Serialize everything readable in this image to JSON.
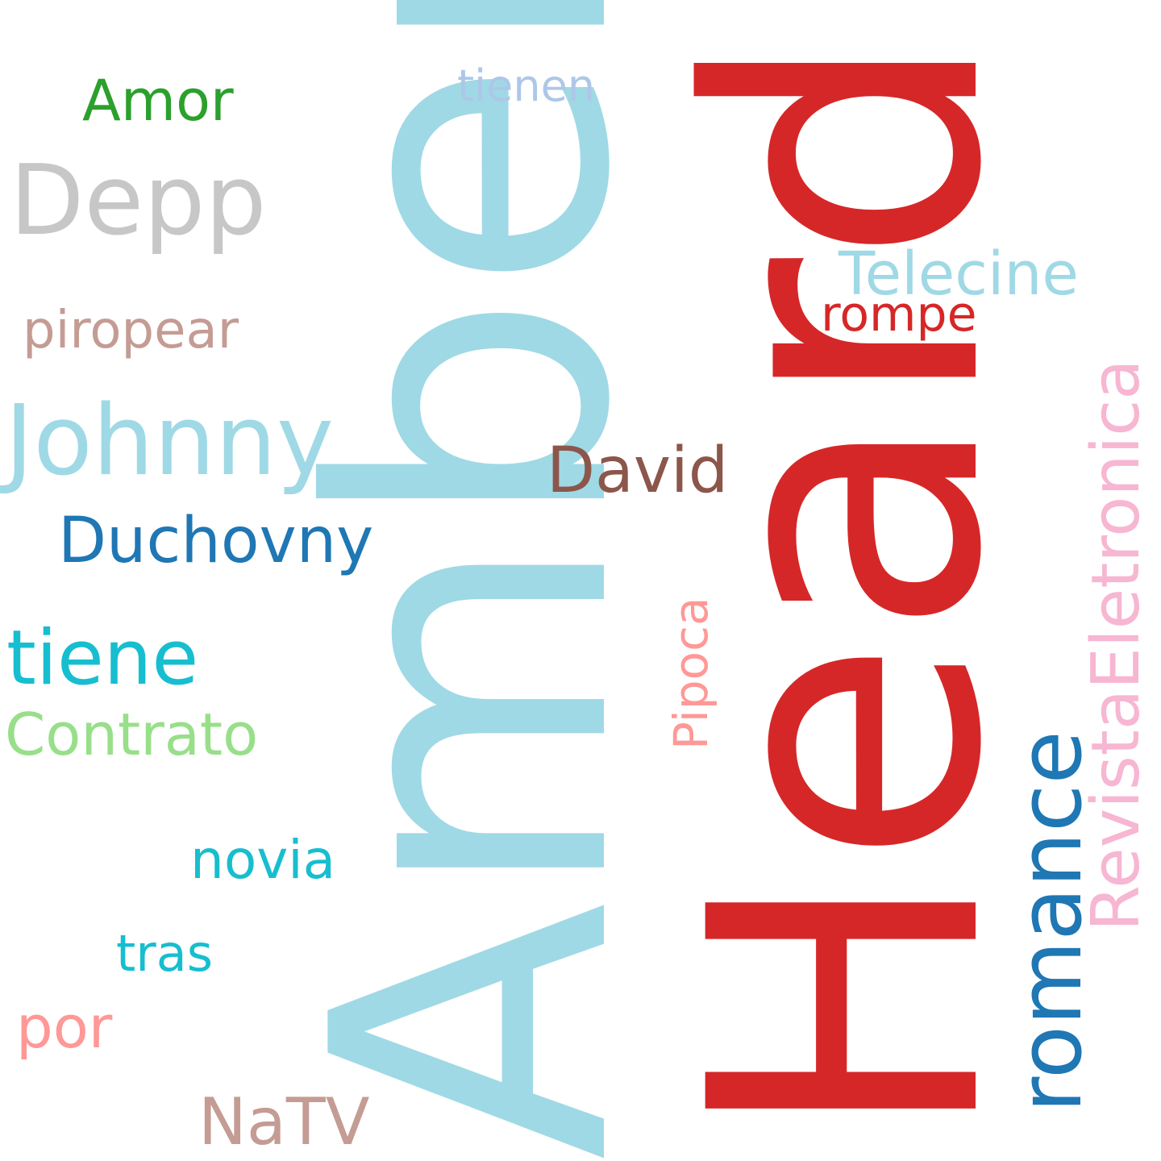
{
  "words": {
    "heard": {
      "text": "Heard",
      "color": "#d62728",
      "orientation": "vertical"
    },
    "amber": {
      "text": "Amber",
      "color": "#9fd9e5",
      "orientation": "vertical"
    },
    "romance": {
      "text": "romance",
      "color": "#1f77b4",
      "orientation": "vertical"
    },
    "revistaeletronica": {
      "text": "RevistaEletronica",
      "color": "#f7b6d2",
      "orientation": "vertical"
    },
    "pipoca": {
      "text": "Pipoca",
      "color": "#ff9896",
      "orientation": "vertical"
    },
    "johnny": {
      "text": "Johnny",
      "color": "#9fd9e5",
      "orientation": "horizontal"
    },
    "depp": {
      "text": "Depp",
      "color": "#c7c7c7",
      "orientation": "horizontal"
    },
    "amor": {
      "text": "Amor",
      "color": "#2ca02c",
      "orientation": "horizontal"
    },
    "tienen": {
      "text": "tienen",
      "color": "#aec7e8",
      "orientation": "horizontal"
    },
    "telecine": {
      "text": "Telecine",
      "color": "#9fd9e5",
      "orientation": "horizontal"
    },
    "rompe": {
      "text": "rompe",
      "color": "#d62728",
      "orientation": "horizontal"
    },
    "piropear": {
      "text": "piropear",
      "color": "#c49c94",
      "orientation": "horizontal"
    },
    "david": {
      "text": "David",
      "color": "#8c564b",
      "orientation": "horizontal"
    },
    "duchovny": {
      "text": "Duchovny",
      "color": "#1f77b4",
      "orientation": "horizontal"
    },
    "tiene": {
      "text": "tiene",
      "color": "#17becf",
      "orientation": "horizontal"
    },
    "contrato": {
      "text": "Contrato",
      "color": "#98df8a",
      "orientation": "horizontal"
    },
    "novia": {
      "text": "novia",
      "color": "#17becf",
      "orientation": "horizontal"
    },
    "tras": {
      "text": "tras",
      "color": "#17becf",
      "orientation": "horizontal"
    },
    "por": {
      "text": "por",
      "color": "#ff9896",
      "orientation": "horizontal"
    },
    "natv": {
      "text": "NaTV",
      "color": "#c49c94",
      "orientation": "horizontal"
    }
  }
}
